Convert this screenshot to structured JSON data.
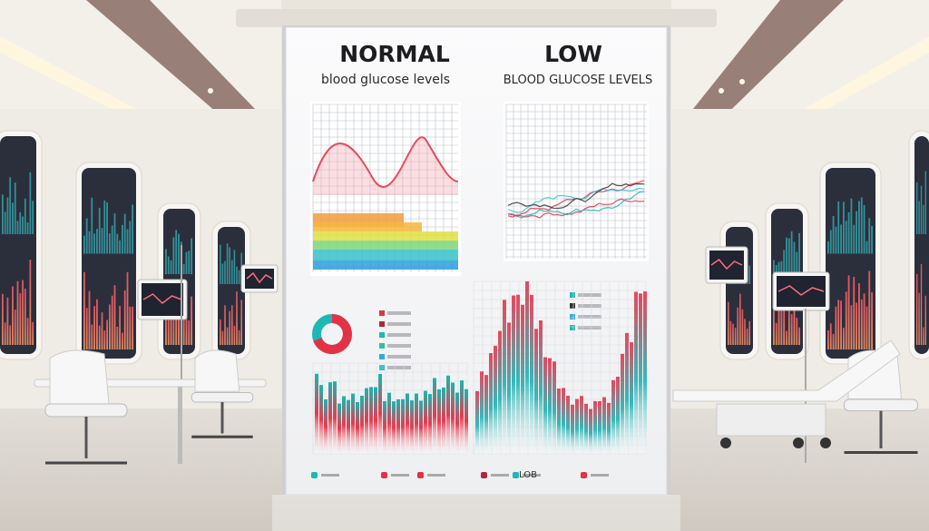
{
  "board": {
    "left_title": "NORMAL",
    "left_subtitle": "blood glucose levels",
    "right_title": "LOW",
    "right_subtitle": "BLOOD GLUCOSE LEVELS",
    "legend_text": "LOB"
  }
}
